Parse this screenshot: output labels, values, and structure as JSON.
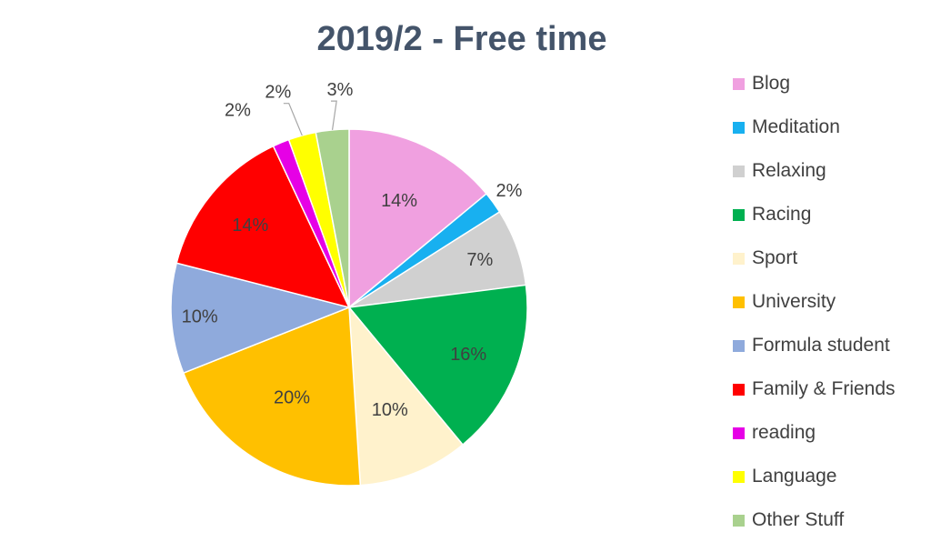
{
  "chart_data": {
    "type": "pie",
    "title": "2019/2 - Free time",
    "legend_position": "right",
    "slices": [
      {
        "name": "Blog",
        "value": 14,
        "label": "14%",
        "color": "#f0a0e0"
      },
      {
        "name": "Meditation",
        "value": 2,
        "label": "2%",
        "color": "#18b0f0"
      },
      {
        "name": "Relaxing",
        "value": 7,
        "label": "7%",
        "color": "#d0d0d0"
      },
      {
        "name": "Racing",
        "value": 16,
        "label": "16%",
        "color": "#00b050"
      },
      {
        "name": "Sport",
        "value": 10,
        "label": "10%",
        "color": "#fff2cc"
      },
      {
        "name": "University",
        "value": 20,
        "label": "20%",
        "color": "#ffc000"
      },
      {
        "name": "Formula student",
        "value": 10,
        "label": "10%",
        "color": "#8faadc"
      },
      {
        "name": "Family & Friends",
        "value": 14,
        "label": "14%",
        "color": "#ff0000"
      },
      {
        "name": "reading",
        "value": 1.5,
        "label": "2%",
        "color": "#e600e6"
      },
      {
        "name": "Language",
        "value": 2.5,
        "label": "2%",
        "color": "#ffff00"
      },
      {
        "name": "Other Stuff",
        "value": 3,
        "label": "3%",
        "color": "#a9d18e"
      }
    ]
  }
}
